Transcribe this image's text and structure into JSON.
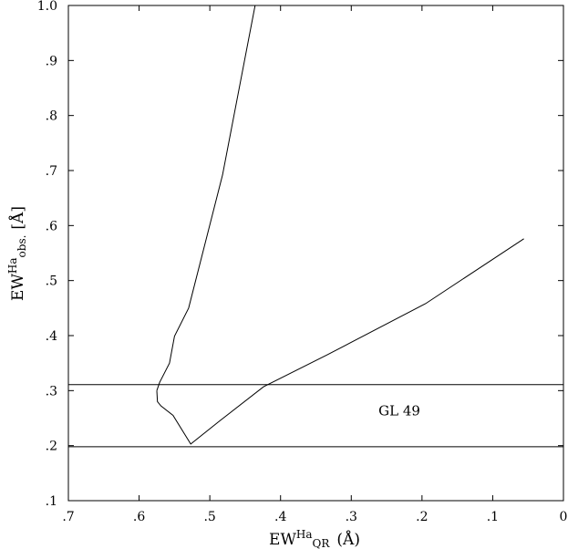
{
  "chart_data": {
    "type": "line",
    "title": "",
    "xlabel": {
      "base": "EW",
      "sup": "Ha",
      "sub": "QR",
      "unit": "(Å)"
    },
    "ylabel": {
      "base": "EW",
      "sup": "Ha",
      "sub": "obs.",
      "unit": "[Å]"
    },
    "xlim": [
      0.7,
      0.0
    ],
    "ylim": [
      0.1,
      1.0
    ],
    "x_reversed": true,
    "x_ticks": [
      0.7,
      0.6,
      0.5,
      0.4,
      0.3,
      0.2,
      0.1,
      0.0
    ],
    "x_tick_labels": [
      ".7",
      ".6",
      ".5",
      ".4",
      ".3",
      ".2",
      ".1",
      "0"
    ],
    "y_ticks": [
      0.1,
      0.2,
      0.3,
      0.4,
      0.5,
      0.6,
      0.7,
      0.8,
      0.9,
      1.0
    ],
    "y_tick_labels": [
      ".1",
      ".2",
      ".3",
      ".4",
      ".5",
      ".6",
      ".7",
      ".8",
      ".9",
      "1.0"
    ],
    "grid": false,
    "series": [
      {
        "points": [
          [
            0.575,
            0.3
          ],
          [
            0.574,
            0.28
          ],
          [
            0.569,
            0.272
          ],
          [
            0.552,
            0.255
          ],
          [
            0.527,
            0.203
          ],
          [
            0.486,
            0.245
          ],
          [
            0.424,
            0.307
          ],
          [
            0.334,
            0.365
          ],
          [
            0.195,
            0.458
          ],
          [
            0.056,
            0.576
          ]
        ]
      },
      {
        "points": [
          [
            0.575,
            0.3
          ],
          [
            0.571,
            0.315
          ],
          [
            0.557,
            0.35
          ],
          [
            0.55,
            0.399
          ],
          [
            0.53,
            0.45
          ],
          [
            0.482,
            0.692
          ],
          [
            0.436,
            1.0
          ]
        ]
      }
    ],
    "hlines": [
      0.311,
      0.198
    ],
    "annotations": [
      {
        "text": "GL 49",
        "x": 0.232,
        "y": 0.255
      }
    ]
  }
}
